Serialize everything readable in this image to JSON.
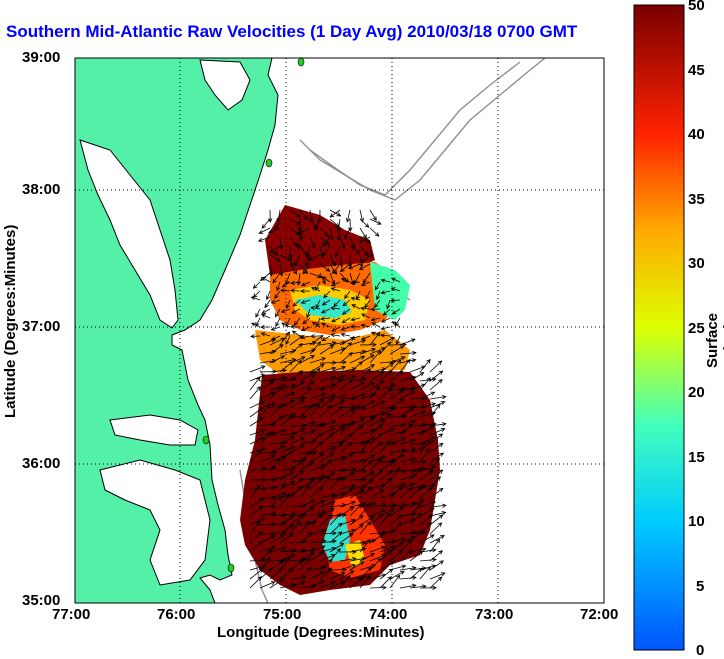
{
  "title": "Southern Mid-Atlantic Raw Velocities (1 Day Avg) 2010/03/18 0700 GMT",
  "axes": {
    "xlabel": "Longitude (Degrees:Minutes)",
    "ylabel": "Latitude (Degrees:Minutes)",
    "xticks": [
      "77:00",
      "76:00",
      "75:00",
      "74:00",
      "73:00",
      "72:00"
    ],
    "yticks": [
      "39:00",
      "38:00",
      "37:00",
      "36:00",
      "35:00"
    ]
  },
  "colorbar": {
    "title": "Surface Velocity (cm/s)",
    "ticks": [
      "50",
      "45",
      "40",
      "35",
      "30",
      "25",
      "20",
      "15",
      "10",
      "5",
      "0"
    ],
    "min": 0,
    "max": 50
  },
  "colors": {
    "title": "#0000ff",
    "land": "#55f0a8",
    "water": "#ffffff",
    "bathymetry": "#909090",
    "vectors": "#000000",
    "stations": "#22cc22"
  },
  "chart_data": {
    "type": "heatmap",
    "xlim": [
      -77,
      -72
    ],
    "ylim": [
      35,
      39
    ],
    "grid": true,
    "variable": "surface current speed (cm/s) with velocity vectors",
    "regions": [
      {
        "area": "north of 37:00 near 74:45",
        "speed": "45-50"
      },
      {
        "area": "around 37:00 near 74:30-74:00",
        "speed": "10-25"
      },
      {
        "area": "36:00 - 35:20 offshore 74:30-75:15",
        "speed": "45-50"
      },
      {
        "area": "35:20 near 74:45",
        "speed": "20-30"
      }
    ]
  }
}
